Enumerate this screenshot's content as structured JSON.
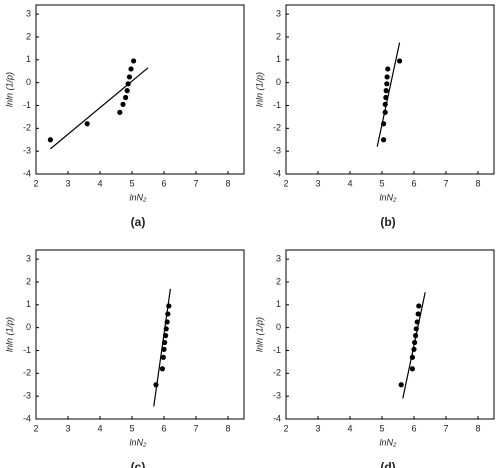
{
  "chart_data": [
    {
      "type": "scatter",
      "caption": "(a)",
      "x_label": "lnN₂",
      "y_label": "lnln (1/p)",
      "xlim": [
        2,
        8.5
      ],
      "ylim": [
        -4,
        3.4
      ],
      "xticks": [
        2,
        3,
        4,
        5,
        6,
        7,
        8
      ],
      "yticks": [
        -4,
        -3,
        -2,
        -1,
        0,
        1,
        2,
        3
      ],
      "series": [
        {
          "color": "#000000",
          "x": [
            2.45,
            3.6,
            4.62,
            4.72,
            4.8,
            4.85,
            4.88,
            4.92,
            4.97,
            5.05
          ],
          "values": [
            -2.5,
            -1.8,
            -1.3,
            -0.95,
            -0.65,
            -0.35,
            -0.05,
            0.25,
            0.6,
            0.95
          ]
        }
      ],
      "fit_line": {
        "color": "#000000",
        "x": [
          2.45,
          5.5
        ],
        "values": [
          -2.9,
          0.65
        ]
      }
    },
    {
      "type": "scatter",
      "caption": "(b)",
      "x_label": "lnN₂",
      "y_label": "lnln (1/p)",
      "xlim": [
        2,
        8.5
      ],
      "ylim": [
        -4,
        3.4
      ],
      "xticks": [
        2,
        3,
        4,
        5,
        6,
        7,
        8
      ],
      "yticks": [
        -4,
        -3,
        -2,
        -1,
        0,
        1,
        2,
        3
      ],
      "series": [
        {
          "color": "#000000",
          "x": [
            5.05,
            5.05,
            5.1,
            5.1,
            5.12,
            5.13,
            5.15,
            5.16,
            5.18,
            5.55
          ],
          "values": [
            -2.5,
            -1.8,
            -1.3,
            -0.95,
            -0.65,
            -0.35,
            -0.05,
            0.25,
            0.6,
            0.95
          ]
        }
      ],
      "fit_line": {
        "color": "#000000",
        "x": [
          4.85,
          5.55
        ],
        "values": [
          -2.8,
          1.75
        ]
      }
    },
    {
      "type": "scatter",
      "caption": "(c)",
      "x_label": "lnN₂",
      "y_label": "lnln (1/p)",
      "xlim": [
        2,
        8.5
      ],
      "ylim": [
        -4,
        3.4
      ],
      "xticks": [
        2,
        3,
        4,
        5,
        6,
        7,
        8
      ],
      "yticks": [
        -4,
        -3,
        -2,
        -1,
        0,
        1,
        2,
        3
      ],
      "series": [
        {
          "color": "#000000",
          "x": [
            5.75,
            5.95,
            5.98,
            6.0,
            6.02,
            6.05,
            6.07,
            6.1,
            6.12,
            6.15
          ],
          "values": [
            -2.5,
            -1.8,
            -1.3,
            -0.95,
            -0.65,
            -0.35,
            -0.05,
            0.25,
            0.6,
            0.95
          ]
        }
      ],
      "fit_line": {
        "color": "#000000",
        "x": [
          5.68,
          6.2
        ],
        "values": [
          -3.45,
          1.7
        ]
      }
    },
    {
      "type": "scatter",
      "caption": "(d)",
      "x_label": "lnN₂",
      "y_label": "lnln (1/p)",
      "xlim": [
        2,
        8.5
      ],
      "ylim": [
        -4,
        3.4
      ],
      "xticks": [
        2,
        3,
        4,
        5,
        6,
        7,
        8
      ],
      "yticks": [
        -4,
        -3,
        -2,
        -1,
        0,
        1,
        2,
        3
      ],
      "series": [
        {
          "color": "#000000",
          "x": [
            5.6,
            5.95,
            5.95,
            6.0,
            6.02,
            6.05,
            6.07,
            6.1,
            6.13,
            6.15
          ],
          "values": [
            -2.5,
            -1.8,
            -1.3,
            -0.95,
            -0.65,
            -0.35,
            -0.05,
            0.25,
            0.6,
            0.95
          ]
        }
      ],
      "fit_line": {
        "color": "#000000",
        "x": [
          5.65,
          6.35
        ],
        "values": [
          -3.1,
          1.55
        ]
      }
    }
  ]
}
